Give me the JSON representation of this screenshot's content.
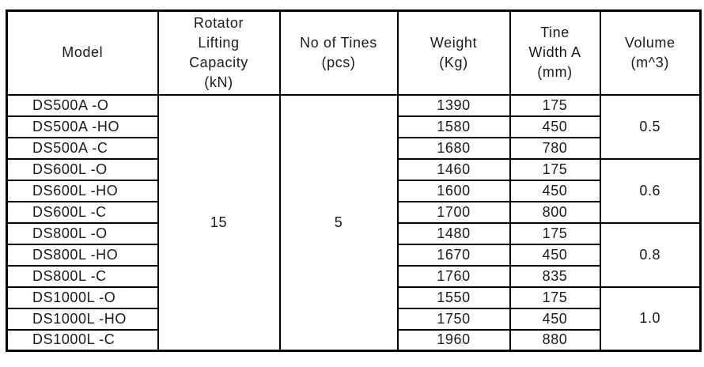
{
  "page": {
    "background": "#ffffff",
    "border_color": "#000000",
    "text_color": "#1a1a1a"
  },
  "table": {
    "headers": {
      "model": [
        "Model"
      ],
      "rotator": [
        "Rotator",
        "Lifting",
        "Capacity",
        "(kN)"
      ],
      "tines": [
        "No of Tines",
        "(pcs)"
      ],
      "weight": [
        "Weight",
        "(Kg)"
      ],
      "tine_width": [
        "Tine",
        "Width A",
        "(mm)"
      ],
      "volume": [
        "Volume",
        "(m^3)"
      ]
    },
    "rotator_capacity": "15",
    "no_of_tines": "5",
    "rows": [
      {
        "model": "DS500A -O",
        "weight": "1390",
        "tine_width": "175"
      },
      {
        "model": "DS500A -HO",
        "weight": "1580",
        "tine_width": "450"
      },
      {
        "model": "DS500A -C",
        "weight": "1680",
        "tine_width": "780"
      },
      {
        "model": "DS600L -O",
        "weight": "1460",
        "tine_width": "175"
      },
      {
        "model": "DS600L -HO",
        "weight": "1600",
        "tine_width": "450"
      },
      {
        "model": "DS600L -C",
        "weight": "1700",
        "tine_width": "800"
      },
      {
        "model": "DS800L -O",
        "weight": "1480",
        "tine_width": "175"
      },
      {
        "model": "DS800L -HO",
        "weight": "1670",
        "tine_width": "450"
      },
      {
        "model": "DS800L -C",
        "weight": "1760",
        "tine_width": "835"
      },
      {
        "model": "DS1000L -O",
        "weight": "1550",
        "tine_width": "175"
      },
      {
        "model": "DS1000L -HO",
        "weight": "1750",
        "tine_width": "450"
      },
      {
        "model": "DS1000L -C",
        "weight": "1960",
        "tine_width": "880"
      }
    ],
    "volume_groups": [
      {
        "value": "0.5"
      },
      {
        "value": "0.6"
      },
      {
        "value": "0.8"
      },
      {
        "value": "1.0"
      }
    ]
  }
}
